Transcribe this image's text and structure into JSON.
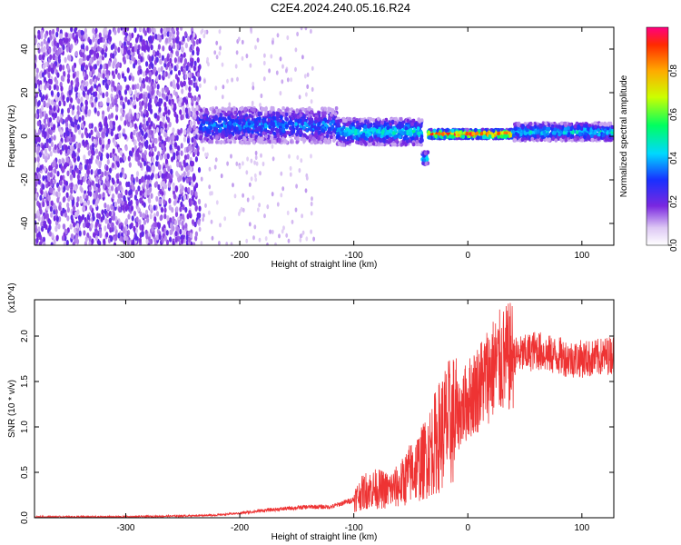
{
  "title": "C2E4.2024.240.05.16.R24",
  "chart_data": [
    {
      "type": "heatmap",
      "xlabel": "Height of straight line (km)",
      "ylabel": "Frequency (Hz)",
      "xlim": [
        -380,
        128
      ],
      "ylim": [
        -50,
        50
      ],
      "xticks": [
        -300,
        -200,
        -100,
        0,
        100
      ],
      "yticks": [
        -40,
        -20,
        0,
        20,
        40
      ],
      "colorbar": {
        "label": "Normalized spectral amplitude",
        "range": [
          0,
          1
        ],
        "ticks": [
          "0.0",
          "0.2",
          "0.4",
          "0.6",
          "0.8"
        ],
        "tick_values": [
          0.0,
          0.2,
          0.4,
          0.6,
          0.8
        ],
        "colormap": "rainbow (purple to red)"
      },
      "description_points": [
        {
          "x_range": [
            -380,
            -235
          ],
          "freq_range": [
            -50,
            50
          ],
          "amplitude": "noise, scattered purple"
        },
        {
          "x_range": [
            -235,
            -115
          ],
          "freq_center": 5,
          "freq_halfwidth": 8,
          "amplitude": 0.35
        },
        {
          "x_range": [
            -115,
            -40
          ],
          "freq_center": 2,
          "freq_halfwidth": 6,
          "amplitude": 0.45
        },
        {
          "x_range": [
            -40,
            -35
          ],
          "freq_center": -10,
          "amplitude": 0.5
        },
        {
          "x_range": [
            -35,
            40
          ],
          "freq_center": 1,
          "freq_halfwidth": 2,
          "amplitude": 0.95
        },
        {
          "x_range": [
            40,
            128
          ],
          "freq_center": 2,
          "freq_halfwidth": 4,
          "amplitude": 0.45
        }
      ]
    },
    {
      "type": "line",
      "xlabel": "Height of straight line (km)",
      "ylabel": "SNR (10 * v/v)",
      "y_multiplier": "(x10^4)",
      "xlim": [
        -380,
        128
      ],
      "ylim": [
        0,
        2.4
      ],
      "xticks": [
        -300,
        -200,
        -100,
        0,
        100
      ],
      "yticks": [
        0.0,
        0.5,
        1.0,
        1.5,
        2.0
      ],
      "color": "#ee3333",
      "series": [
        {
          "x": [
            -380,
            -300,
            -250,
            -220,
            -200,
            -180,
            -160,
            -140,
            -120,
            -100,
            -90,
            -80,
            -70,
            -60,
            -50,
            -40,
            -30,
            -20,
            -15,
            -10,
            -5,
            0,
            10,
            20,
            30,
            40,
            50,
            60,
            70,
            80,
            90,
            100,
            110,
            128
          ],
          "values": [
            0.01,
            0.01,
            0.02,
            0.03,
            0.05,
            0.08,
            0.1,
            0.12,
            0.12,
            0.2,
            0.3,
            0.32,
            0.3,
            0.35,
            0.5,
            0.6,
            0.8,
            1.0,
            1.05,
            1.1,
            1.2,
            1.3,
            1.45,
            1.62,
            1.72,
            1.78,
            1.8,
            1.85,
            1.8,
            1.78,
            1.75,
            1.75,
            1.75,
            1.8
          ]
        }
      ]
    }
  ]
}
